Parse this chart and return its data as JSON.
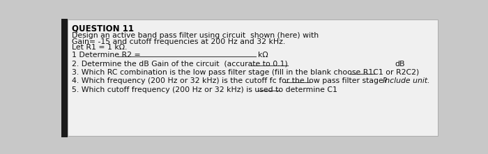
{
  "title": "QUESTION 11",
  "line1_pre": "Design an active band pass filter using circuit  shown (",
  "line1_link": "here",
  "line1_post": ") with",
  "line2": "Gain= -15 and cutoff frequencies at 200 Hz and 32 kHz.",
  "line3": "Let R1 = 1 kΩ.",
  "q1_label": "1 Determine R2 = ",
  "q1_unit": "kΩ",
  "q2_label": "2. Determine the dB Gain of the circuit  (accurate to 0.1)",
  "q2_unit": "dB",
  "q3_label": "3. Which RC combination is the low pass filter stage (fill in the blank choose R1C1 or R2C2)",
  "q4_label": "4. Which frequency (200 Hz or 32 kHz) is the cutoff fc for the low pass filter stage?",
  "q4_note": "Include unit.",
  "q5_label": "5. Which cutoff frequency (200 Hz or 32 kHz) is used to determine C1",
  "bg_color": "#c8c8c8",
  "box_color": "#f0f0f0",
  "text_color": "#111111",
  "title_color": "#000000",
  "left_strip_color": "#1a1a1a"
}
